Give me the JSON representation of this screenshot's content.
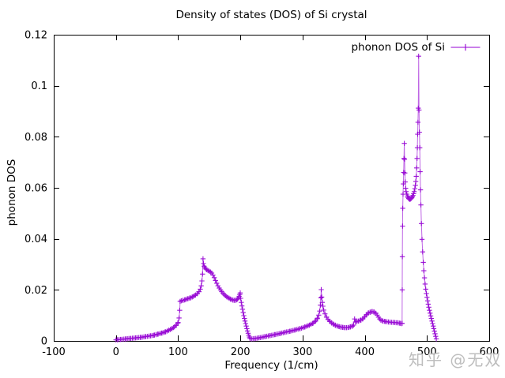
{
  "chart_data": {
    "type": "line",
    "style": "linespoints",
    "title": "Density of states (DOS) of Si crystal",
    "xlabel": "Frequency (1/cm)",
    "ylabel": "phonon DOS",
    "xlim": [
      -100,
      600
    ],
    "ylim": [
      0,
      0.12
    ],
    "grid": false,
    "xticks": {
      "values": [
        -100,
        0,
        100,
        200,
        300,
        400,
        500,
        600
      ],
      "labels": [
        "-100",
        "0",
        "100",
        "200",
        "300",
        "400",
        "500",
        "600"
      ]
    },
    "yticks": {
      "values": [
        0,
        0.02,
        0.04,
        0.06,
        0.08,
        0.1,
        0.12
      ],
      "labels": [
        "0",
        "0.02",
        "0.04",
        "0.06",
        "0.08",
        "0.1",
        "0.12"
      ]
    },
    "axis_color": "#000000",
    "legend": {
      "position": "top-right",
      "entries": [
        {
          "label": "phonon DOS of Si",
          "color": "#9400d3",
          "marker": "plus",
          "line": true
        }
      ]
    },
    "series": [
      {
        "name": "phonon DOS of Si",
        "color": "#9400d3",
        "marker": "plus",
        "marker_step": 2.4,
        "points": [
          [
            0,
            0.0004
          ],
          [
            8,
            0.0006
          ],
          [
            16,
            0.0008
          ],
          [
            24,
            0.001
          ],
          [
            32,
            0.0012
          ],
          [
            40,
            0.0014
          ],
          [
            48,
            0.0017
          ],
          [
            56,
            0.002
          ],
          [
            62,
            0.0023
          ],
          [
            68,
            0.0027
          ],
          [
            74,
            0.0031
          ],
          [
            80,
            0.0036
          ],
          [
            85,
            0.0042
          ],
          [
            90,
            0.0048
          ],
          [
            94,
            0.0055
          ],
          [
            97,
            0.0062
          ],
          [
            100,
            0.0072
          ],
          [
            101.5,
            0.009
          ],
          [
            102.5,
            0.012
          ],
          [
            103.2,
            0.0155
          ],
          [
            105,
            0.0157
          ],
          [
            108,
            0.0159
          ],
          [
            112,
            0.0162
          ],
          [
            116,
            0.0166
          ],
          [
            120,
            0.0169
          ],
          [
            124,
            0.0174
          ],
          [
            128,
            0.018
          ],
          [
            131,
            0.0186
          ],
          [
            133.5,
            0.0193
          ],
          [
            135.5,
            0.0203
          ],
          [
            137,
            0.0216
          ],
          [
            138.2,
            0.0235
          ],
          [
            139.2,
            0.0262
          ],
          [
            140,
            0.0322
          ],
          [
            140.8,
            0.0303
          ],
          [
            141.8,
            0.0293
          ],
          [
            143,
            0.0287
          ],
          [
            144.5,
            0.0282
          ],
          [
            146,
            0.0279
          ],
          [
            148,
            0.0276
          ],
          [
            150,
            0.0273
          ],
          [
            152,
            0.027
          ],
          [
            154,
            0.0266
          ],
          [
            156,
            0.0258
          ],
          [
            158,
            0.0248
          ],
          [
            160,
            0.0237
          ],
          [
            162,
            0.0226
          ],
          [
            164,
            0.0216
          ],
          [
            166,
            0.0207
          ],
          [
            168,
            0.02
          ],
          [
            170,
            0.0193
          ],
          [
            172,
            0.0187
          ],
          [
            174,
            0.0182
          ],
          [
            176,
            0.0177
          ],
          [
            178,
            0.0173
          ],
          [
            180,
            0.017
          ],
          [
            182,
            0.0167
          ],
          [
            184,
            0.0164
          ],
          [
            186,
            0.0162
          ],
          [
            188,
            0.016
          ],
          [
            190,
            0.0159
          ],
          [
            192,
            0.0159
          ],
          [
            194,
            0.0161
          ],
          [
            195.5,
            0.0164
          ],
          [
            197,
            0.0169
          ],
          [
            198,
            0.0175
          ],
          [
            199,
            0.0182
          ],
          [
            199.8,
            0.0188
          ],
          [
            200.6,
            0.0167
          ],
          [
            201.5,
            0.0151
          ],
          [
            202.5,
            0.0137
          ],
          [
            203.5,
            0.0124
          ],
          [
            204.5,
            0.0111
          ],
          [
            205.5,
            0.0099
          ],
          [
            206.5,
            0.0088
          ],
          [
            207.5,
            0.0078
          ],
          [
            208.5,
            0.0068
          ],
          [
            209.5,
            0.0058
          ],
          [
            210.5,
            0.0048
          ],
          [
            211.5,
            0.0039
          ],
          [
            212.5,
            0.003
          ],
          [
            213.5,
            0.0022
          ],
          [
            214.5,
            0.0015
          ],
          [
            215.5,
            0.001
          ],
          [
            218,
            0.0008
          ],
          [
            225,
            0.001
          ],
          [
            232,
            0.0013
          ],
          [
            240,
            0.0017
          ],
          [
            248,
            0.0021
          ],
          [
            256,
            0.0025
          ],
          [
            264,
            0.0029
          ],
          [
            272,
            0.0034
          ],
          [
            280,
            0.0038
          ],
          [
            288,
            0.0043
          ],
          [
            296,
            0.0048
          ],
          [
            304,
            0.0055
          ],
          [
            311,
            0.0062
          ],
          [
            317,
            0.007
          ],
          [
            321,
            0.0078
          ],
          [
            324,
            0.0089
          ],
          [
            326,
            0.0101
          ],
          [
            327.6,
            0.0117
          ],
          [
            328.7,
            0.014
          ],
          [
            329.4,
            0.0169
          ],
          [
            330,
            0.0201
          ],
          [
            330.8,
            0.0172
          ],
          [
            331.7,
            0.0151
          ],
          [
            332.7,
            0.0136
          ],
          [
            334,
            0.0121
          ],
          [
            336,
            0.0106
          ],
          [
            338.5,
            0.0093
          ],
          [
            341,
            0.0084
          ],
          [
            344,
            0.0076
          ],
          [
            347,
            0.007
          ],
          [
            350,
            0.0065
          ],
          [
            353,
            0.0061
          ],
          [
            356,
            0.0058
          ],
          [
            359,
            0.0056
          ],
          [
            362,
            0.0054
          ],
          [
            365,
            0.0053
          ],
          [
            368,
            0.0052
          ],
          [
            371,
            0.0052
          ],
          [
            374,
            0.0053
          ],
          [
            377,
            0.0055
          ],
          [
            380,
            0.0058
          ],
          [
            382,
            0.0062
          ],
          [
            383.6,
            0.0086
          ],
          [
            385,
            0.0074
          ],
          [
            387,
            0.0076
          ],
          [
            390,
            0.0078
          ],
          [
            394,
            0.0082
          ],
          [
            397,
            0.0087
          ],
          [
            400,
            0.0095
          ],
          [
            403,
            0.0104
          ],
          [
            406,
            0.011
          ],
          [
            409,
            0.0113
          ],
          [
            412,
            0.0115
          ],
          [
            415,
            0.0113
          ],
          [
            418,
            0.0108
          ],
          [
            420,
            0.0101
          ],
          [
            422,
            0.0093
          ],
          [
            424,
            0.0086
          ],
          [
            426,
            0.0081
          ],
          [
            429,
            0.0078
          ],
          [
            433,
            0.0076
          ],
          [
            438,
            0.0074
          ],
          [
            443,
            0.0073
          ],
          [
            448,
            0.0072
          ],
          [
            453,
            0.0071
          ],
          [
            457,
            0.0069
          ],
          [
            459.6,
            0.0068
          ],
          [
            460,
            0.0069
          ],
          [
            460.2,
            0.02
          ],
          [
            460.4,
            0.033
          ],
          [
            460.7,
            0.045
          ],
          [
            461,
            0.052
          ],
          [
            461.5,
            0.0575
          ],
          [
            462,
            0.0615
          ],
          [
            462.5,
            0.066
          ],
          [
            463,
            0.0715
          ],
          [
            463.5,
            0.0774
          ],
          [
            464,
            0.0712
          ],
          [
            464.5,
            0.0658
          ],
          [
            465,
            0.0623
          ],
          [
            465.7,
            0.0598
          ],
          [
            466.5,
            0.0585
          ],
          [
            467.5,
            0.0575
          ],
          [
            468.5,
            0.0568
          ],
          [
            469.5,
            0.0562
          ],
          [
            470.5,
            0.0558
          ],
          [
            471.5,
            0.0556
          ],
          [
            472.5,
            0.0555
          ],
          [
            473.5,
            0.0556
          ],
          [
            474.5,
            0.0558
          ],
          [
            475.5,
            0.0561
          ],
          [
            476.5,
            0.0565
          ],
          [
            477.5,
            0.057
          ],
          [
            478.5,
            0.0577
          ],
          [
            479.5,
            0.0585
          ],
          [
            480.5,
            0.0597
          ],
          [
            481.3,
            0.061
          ],
          [
            482,
            0.0625
          ],
          [
            482.7,
            0.0645
          ],
          [
            483.4,
            0.0678
          ],
          [
            484,
            0.0715
          ],
          [
            484.5,
            0.0757
          ],
          [
            485,
            0.081
          ],
          [
            485.5,
            0.0857
          ],
          [
            486,
            0.0912
          ],
          [
            486.6,
            0.1116
          ],
          [
            487.2,
            0.0905
          ],
          [
            487.8,
            0.0818
          ],
          [
            488.4,
            0.0757
          ],
          [
            489,
            0.0663
          ],
          [
            489.6,
            0.0592
          ],
          [
            490.2,
            0.0533
          ],
          [
            491,
            0.046
          ],
          [
            492,
            0.0398
          ],
          [
            493,
            0.0349
          ],
          [
            494,
            0.0308
          ],
          [
            495,
            0.0275
          ],
          [
            496,
            0.0247
          ],
          [
            497,
            0.0223
          ],
          [
            498,
            0.0203
          ],
          [
            499,
            0.0186
          ],
          [
            500,
            0.0171
          ],
          [
            501,
            0.0157
          ],
          [
            502,
            0.0144
          ],
          [
            503,
            0.0132
          ],
          [
            504,
            0.012
          ],
          [
            505,
            0.0109
          ],
          [
            506,
            0.0098
          ],
          [
            507,
            0.0088
          ],
          [
            508,
            0.0078
          ],
          [
            509,
            0.0068
          ],
          [
            510,
            0.0058
          ],
          [
            511,
            0.0048
          ],
          [
            512,
            0.0038
          ],
          [
            513,
            0.0028
          ],
          [
            514,
            0.0018
          ],
          [
            515,
            0.0008
          ]
        ]
      }
    ]
  },
  "watermark": {
    "text": "知乎 @无双",
    "color": "#b9b9b9"
  }
}
